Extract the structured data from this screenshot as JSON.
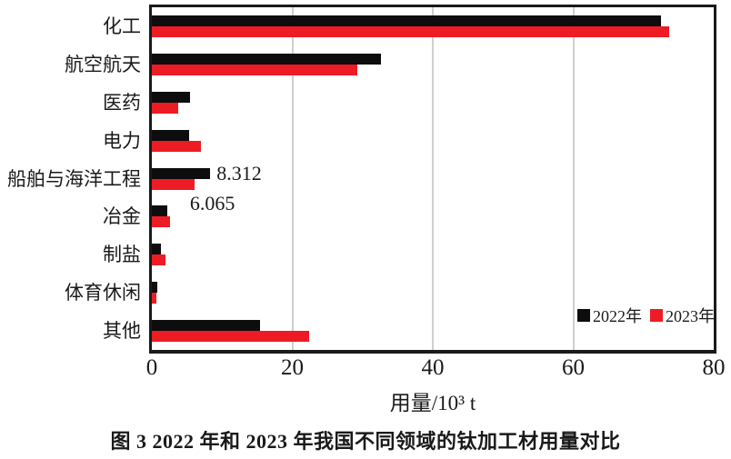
{
  "figure": {
    "caption": "图 3  2022 年和 2023 年我国不同领域的钛加工材用量对比"
  },
  "chart_data": {
    "type": "bar",
    "orientation": "horizontal",
    "title": "",
    "xlabel": "用量/10³ t",
    "ylabel": "",
    "xlim": [
      0,
      80
    ],
    "xticks": [
      0,
      20,
      40,
      60,
      80
    ],
    "grid": "vertical gridlines at interior ticks",
    "legend_position": "inside lower-right",
    "categories": [
      "化工",
      "航空航天",
      "医药",
      "电力",
      "船舶与海洋工程",
      "冶金",
      "制盐",
      "体育休闲",
      "其他"
    ],
    "series": [
      {
        "name": "2022年",
        "color": "#0d0d0d",
        "values": [
          72.5,
          32.6,
          5.4,
          5.3,
          8.312,
          2.2,
          1.3,
          0.8,
          15.4
        ]
      },
      {
        "name": "2023年",
        "color": "#ed1c24",
        "values": [
          73.6,
          29.2,
          3.8,
          7.0,
          6.065,
          2.6,
          2.0,
          0.7,
          22.4
        ]
      }
    ],
    "annotations": [
      {
        "text": "8.312",
        "series": 0,
        "category": 4,
        "position": "right"
      },
      {
        "text": "6.065",
        "series": 1,
        "category": 4,
        "position": "below"
      }
    ],
    "colors": {
      "gridline": "#cfcfcf",
      "border": "#1a1a1a",
      "text": "#1a1a1a"
    }
  }
}
